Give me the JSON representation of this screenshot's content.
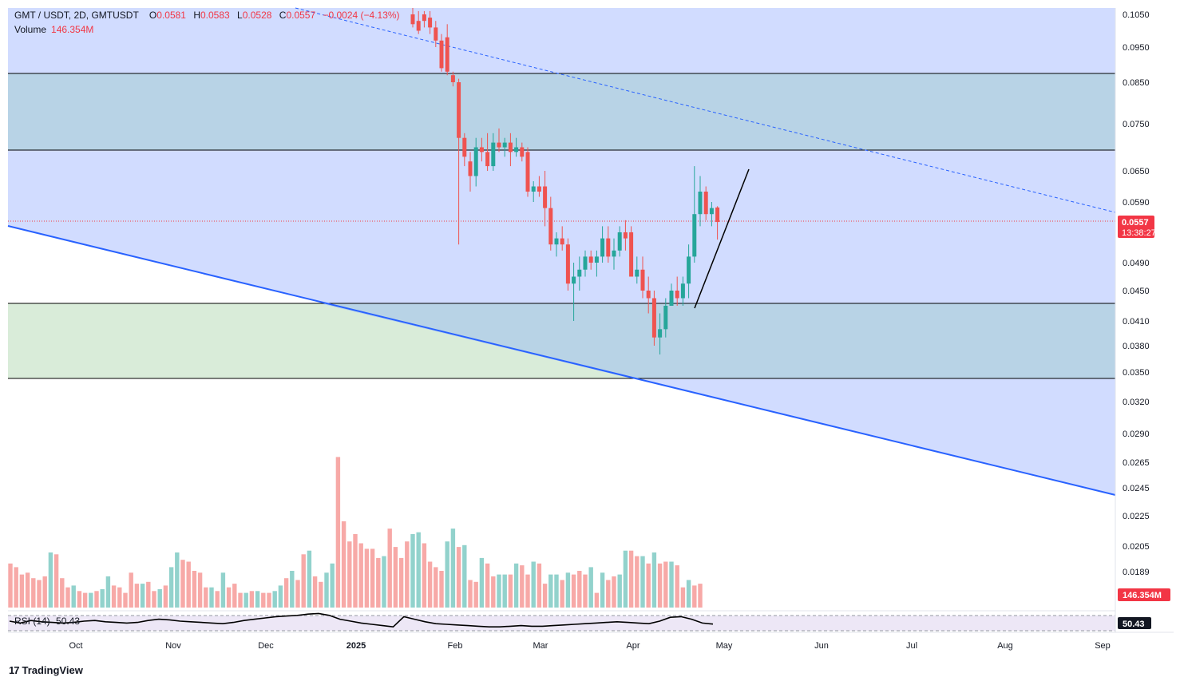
{
  "header": {
    "symbol": "GMT / USDT, 2D, GMTUSDT",
    "o_label": "O",
    "o_val": "0.0581",
    "h_label": "H",
    "h_val": "0.0583",
    "l_label": "L",
    "l_val": "0.0528",
    "c_label": "C",
    "c_val": "0.0557",
    "change": "−0.0024 (−4.13%)",
    "volume_label": "Volume",
    "volume_val": "146.354M"
  },
  "rsi": {
    "label": "RSI (14)",
    "value": "50.43"
  },
  "price_badge": {
    "price": "0.0557",
    "countdown": "13:38:27"
  },
  "volume_badge": "146.354M",
  "branding": {
    "logo_mark": "17",
    "name": "TradingView"
  },
  "colors": {
    "up": "#26a69a",
    "down": "#ef5350",
    "zone": "#d1dcff",
    "zone_dark": "#b8d3e6",
    "green_zone": "#d9ecd9",
    "trend": "#2962ff"
  },
  "chart_data": {
    "type": "candlestick",
    "symbol": "GMTUSDT",
    "interval": "2D",
    "y_ticks": [
      "0.1050",
      "0.0950",
      "0.0850",
      "0.0750",
      "0.0650",
      "0.0590",
      "0.0490",
      "0.0450",
      "0.0410",
      "0.0380",
      "0.0350",
      "0.0320",
      "0.0290",
      "0.0265",
      "0.0245",
      "0.0225",
      "0.0205",
      "0.0189"
    ],
    "x_labels": [
      "Oct",
      "Nov",
      "Dec",
      "2025",
      "Feb",
      "Mar",
      "Apr",
      "May",
      "Jun",
      "Jul",
      "Aug",
      "Sep"
    ],
    "horizontal_levels": [
      0.087,
      0.07,
      0.0435,
      0.0345
    ],
    "candles": [
      {
        "o": 0.105,
        "h": 0.108,
        "l": 0.101,
        "c": 0.102
      },
      {
        "o": 0.103,
        "h": 0.106,
        "l": 0.099,
        "c": 0.1
      },
      {
        "o": 0.105,
        "h": 0.106,
        "l": 0.101,
        "c": 0.103
      },
      {
        "o": 0.104,
        "h": 0.106,
        "l": 0.099,
        "c": 0.101
      },
      {
        "o": 0.101,
        "h": 0.103,
        "l": 0.095,
        "c": 0.097
      },
      {
        "o": 0.097,
        "h": 0.099,
        "l": 0.088,
        "c": 0.089
      },
      {
        "o": 0.098,
        "h": 0.102,
        "l": 0.087,
        "c": 0.088
      },
      {
        "o": 0.087,
        "h": 0.088,
        "l": 0.084,
        "c": 0.085
      },
      {
        "o": 0.085,
        "h": 0.086,
        "l": 0.052,
        "c": 0.072
      },
      {
        "o": 0.072,
        "h": 0.073,
        "l": 0.066,
        "c": 0.068
      },
      {
        "o": 0.067,
        "h": 0.069,
        "l": 0.061,
        "c": 0.064
      },
      {
        "o": 0.064,
        "h": 0.072,
        "l": 0.062,
        "c": 0.07
      },
      {
        "o": 0.07,
        "h": 0.072,
        "l": 0.067,
        "c": 0.069
      },
      {
        "o": 0.069,
        "h": 0.073,
        "l": 0.065,
        "c": 0.066
      },
      {
        "o": 0.066,
        "h": 0.073,
        "l": 0.065,
        "c": 0.071
      },
      {
        "o": 0.071,
        "h": 0.074,
        "l": 0.069,
        "c": 0.07
      },
      {
        "o": 0.07,
        "h": 0.072,
        "l": 0.068,
        "c": 0.071
      },
      {
        "o": 0.071,
        "h": 0.073,
        "l": 0.066,
        "c": 0.069
      },
      {
        "o": 0.069,
        "h": 0.072,
        "l": 0.068,
        "c": 0.07
      },
      {
        "o": 0.07,
        "h": 0.071,
        "l": 0.067,
        "c": 0.068
      },
      {
        "o": 0.069,
        "h": 0.07,
        "l": 0.06,
        "c": 0.061
      },
      {
        "o": 0.061,
        "h": 0.063,
        "l": 0.059,
        "c": 0.062
      },
      {
        "o": 0.062,
        "h": 0.064,
        "l": 0.06,
        "c": 0.061
      },
      {
        "o": 0.062,
        "h": 0.065,
        "l": 0.055,
        "c": 0.058
      },
      {
        "o": 0.058,
        "h": 0.06,
        "l": 0.051,
        "c": 0.052
      },
      {
        "o": 0.052,
        "h": 0.054,
        "l": 0.05,
        "c": 0.053
      },
      {
        "o": 0.053,
        "h": 0.055,
        "l": 0.051,
        "c": 0.052
      },
      {
        "o": 0.052,
        "h": 0.053,
        "l": 0.045,
        "c": 0.046
      },
      {
        "o": 0.046,
        "h": 0.049,
        "l": 0.041,
        "c": 0.047
      },
      {
        "o": 0.047,
        "h": 0.05,
        "l": 0.045,
        "c": 0.048
      },
      {
        "o": 0.048,
        "h": 0.051,
        "l": 0.047,
        "c": 0.05
      },
      {
        "o": 0.05,
        "h": 0.051,
        "l": 0.048,
        "c": 0.049
      },
      {
        "o": 0.049,
        "h": 0.051,
        "l": 0.047,
        "c": 0.05
      },
      {
        "o": 0.05,
        "h": 0.055,
        "l": 0.049,
        "c": 0.053
      },
      {
        "o": 0.053,
        "h": 0.055,
        "l": 0.049,
        "c": 0.05
      },
      {
        "o": 0.05,
        "h": 0.053,
        "l": 0.048,
        "c": 0.051
      },
      {
        "o": 0.051,
        "h": 0.055,
        "l": 0.05,
        "c": 0.054
      },
      {
        "o": 0.054,
        "h": 0.056,
        "l": 0.051,
        "c": 0.053
      },
      {
        "o": 0.054,
        "h": 0.055,
        "l": 0.047,
        "c": 0.047
      },
      {
        "o": 0.047,
        "h": 0.05,
        "l": 0.046,
        "c": 0.048
      },
      {
        "o": 0.048,
        "h": 0.05,
        "l": 0.044,
        "c": 0.045
      },
      {
        "o": 0.045,
        "h": 0.047,
        "l": 0.042,
        "c": 0.044
      },
      {
        "o": 0.044,
        "h": 0.045,
        "l": 0.038,
        "c": 0.039
      },
      {
        "o": 0.039,
        "h": 0.042,
        "l": 0.037,
        "c": 0.04
      },
      {
        "o": 0.04,
        "h": 0.044,
        "l": 0.039,
        "c": 0.043
      },
      {
        "o": 0.043,
        "h": 0.046,
        "l": 0.043,
        "c": 0.045
      },
      {
        "o": 0.045,
        "h": 0.047,
        "l": 0.043,
        "c": 0.044
      },
      {
        "o": 0.044,
        "h": 0.047,
        "l": 0.043,
        "c": 0.046
      },
      {
        "o": 0.046,
        "h": 0.052,
        "l": 0.044,
        "c": 0.05
      },
      {
        "o": 0.05,
        "h": 0.066,
        "l": 0.049,
        "c": 0.057
      },
      {
        "o": 0.057,
        "h": 0.064,
        "l": 0.055,
        "c": 0.061
      },
      {
        "o": 0.061,
        "h": 0.062,
        "l": 0.056,
        "c": 0.057
      },
      {
        "o": 0.057,
        "h": 0.059,
        "l": 0.055,
        "c": 0.058
      },
      {
        "o": 0.0581,
        "h": 0.0583,
        "l": 0.0528,
        "c": 0.0557
      }
    ],
    "volume": [
      24,
      22,
      18,
      19,
      16,
      15,
      17,
      30,
      29,
      16,
      11,
      12,
      9,
      8,
      8,
      9,
      10,
      17,
      12,
      11,
      8,
      19,
      13,
      13,
      14,
      9,
      10,
      12,
      22,
      30,
      26,
      25,
      20,
      19,
      11,
      11,
      9,
      19,
      11,
      13,
      8,
      8,
      9,
      9,
      8,
      8,
      9,
      12,
      16,
      20,
      15,
      29,
      31,
      17,
      14,
      19,
      24,
      82,
      47,
      36,
      40,
      35,
      32,
      32,
      27,
      28,
      43,
      33,
      27,
      36,
      40,
      41,
      35,
      25,
      22,
      20,
      36,
      43,
      33,
      34,
      15,
      14,
      27,
      24,
      17,
      18,
      18,
      18,
      24,
      23,
      18,
      25,
      24,
      13,
      18,
      18,
      15,
      19,
      18,
      20,
      18,
      22,
      8,
      19,
      15,
      17,
      18,
      31,
      31,
      28,
      28,
      24,
      30,
      24,
      25,
      25,
      23,
      11,
      15,
      12,
      13
    ],
    "rsi": [
      55,
      52,
      56,
      54,
      53,
      52,
      53,
      55,
      56,
      54,
      53,
      52,
      53,
      56,
      58,
      57,
      55,
      54,
      53,
      52,
      51,
      53,
      56,
      58,
      60,
      62,
      63,
      64,
      66,
      67,
      64,
      58,
      55,
      52,
      50,
      48,
      46,
      62,
      58,
      54,
      51,
      50,
      49,
      48,
      47,
      46,
      46,
      47,
      48,
      47,
      47,
      48,
      49,
      50,
      51,
      52,
      53,
      54,
      53,
      52,
      51,
      55,
      61,
      62,
      58,
      52,
      50.43
    ],
    "trendlines": [
      {
        "style": "solid",
        "color": "#2962ff"
      },
      {
        "style": "dashed",
        "color": "#2962ff"
      },
      {
        "style": "solid",
        "color": "#000000"
      }
    ]
  }
}
